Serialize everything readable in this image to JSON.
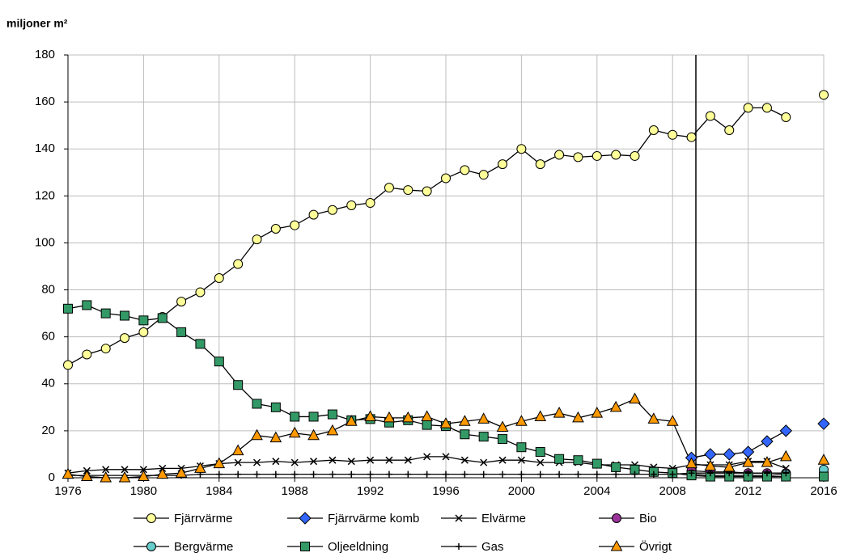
{
  "chart_data": {
    "type": "line",
    "y_label": "miljoner m²",
    "x": [
      1976,
      1977,
      1978,
      1979,
      1980,
      1981,
      1982,
      1983,
      1984,
      1985,
      1986,
      1987,
      1988,
      1989,
      1990,
      1991,
      1992,
      1993,
      1994,
      1995,
      1996,
      1997,
      1998,
      1999,
      2000,
      2001,
      2002,
      2003,
      2004,
      2005,
      2006,
      2007,
      2008,
      2009,
      2010,
      2011,
      2012,
      2013,
      2014,
      2015,
      2016
    ],
    "xlim": [
      1976,
      2016
    ],
    "xticks": [
      1976,
      1980,
      1984,
      1988,
      1992,
      1996,
      2000,
      2004,
      2008,
      2012,
      2016
    ],
    "ylim": [
      0,
      180
    ],
    "yticks": [
      0,
      20,
      40,
      60,
      80,
      100,
      120,
      140,
      160,
      180
    ],
    "grid": true,
    "legend": "bottom",
    "series": [
      {
        "name": "Fjärrvärme",
        "color": "#ffff99",
        "marker": "circle",
        "values": [
          48,
          52.5,
          55,
          59.5,
          62,
          68.5,
          75,
          79,
          85,
          91,
          101.5,
          106,
          107.5,
          112,
          114,
          116,
          117,
          123.5,
          122.5,
          122,
          127.5,
          131,
          129,
          133.5,
          140,
          133.5,
          137.5,
          136.5,
          137,
          137.5,
          137,
          148,
          146,
          145,
          154,
          148,
          157.5,
          157.5,
          153.5,
          null,
          163
        ]
      },
      {
        "name": "Fjärrvärme komb",
        "color": "#3366ff",
        "marker": "diamond",
        "values": [
          null,
          null,
          null,
          null,
          null,
          null,
          null,
          null,
          null,
          null,
          null,
          null,
          null,
          null,
          null,
          null,
          null,
          null,
          null,
          null,
          null,
          null,
          null,
          null,
          null,
          null,
          null,
          null,
          null,
          null,
          null,
          null,
          null,
          8.5,
          10,
          10,
          11,
          15.5,
          20,
          null,
          23
        ]
      },
      {
        "name": "Elvärme",
        "color": "#000000",
        "marker": "x",
        "values": [
          2,
          3,
          3.5,
          3.5,
          3.5,
          4,
          4,
          5,
          6,
          6.5,
          6.5,
          7,
          6.5,
          7,
          7.5,
          7,
          7.5,
          7.5,
          7.5,
          9,
          9,
          7.5,
          6.5,
          7.5,
          7.5,
          6.5,
          6.5,
          6.5,
          5.5,
          5.5,
          5.5,
          4.5,
          4,
          5.5,
          5.5,
          5.5,
          7,
          7,
          4,
          null,
          null
        ]
      },
      {
        "name": "Bio",
        "color": "#993399",
        "marker": "circle",
        "values": [
          null,
          null,
          null,
          null,
          null,
          null,
          null,
          null,
          null,
          null,
          null,
          null,
          null,
          null,
          null,
          null,
          null,
          null,
          null,
          null,
          null,
          null,
          null,
          null,
          null,
          null,
          null,
          null,
          null,
          null,
          null,
          null,
          null,
          3,
          2.5,
          2.5,
          2,
          2,
          2,
          null,
          2
        ]
      },
      {
        "name": "Bergvärme",
        "color": "#66cccc",
        "marker": "circle",
        "values": [
          null,
          null,
          null,
          null,
          null,
          null,
          null,
          null,
          null,
          null,
          null,
          null,
          null,
          null,
          null,
          null,
          null,
          null,
          null,
          null,
          null,
          null,
          null,
          null,
          null,
          null,
          null,
          null,
          null,
          null,
          null,
          null,
          null,
          1.5,
          1,
          1,
          1,
          1,
          1.5,
          null,
          3.5
        ]
      },
      {
        "name": "Oljeeldning",
        "color": "#339966",
        "marker": "square",
        "values": [
          72,
          73.5,
          70,
          69,
          67,
          68,
          62,
          57,
          49.5,
          39.5,
          31.5,
          30,
          26,
          26,
          27,
          24.5,
          25,
          23.5,
          24.5,
          22.5,
          22,
          18.5,
          17.5,
          16.5,
          13,
          11,
          8,
          7.5,
          6,
          4.5,
          3.5,
          2.5,
          2,
          1,
          0.5,
          0.5,
          0.5,
          0.5,
          0.5,
          null,
          0.5
        ]
      },
      {
        "name": "Gas",
        "color": "#000000",
        "marker": "plus",
        "values": [
          1,
          1,
          1,
          1,
          1,
          1,
          1,
          1.5,
          1.5,
          1.5,
          1.5,
          1.5,
          1.5,
          1.5,
          1.5,
          1.5,
          1.5,
          1.5,
          1.5,
          1.5,
          1.5,
          1.5,
          1.5,
          1.5,
          1.5,
          1.5,
          1.5,
          1.5,
          1.5,
          1.5,
          1.5,
          1.5,
          1.5,
          2,
          2,
          2,
          2,
          2,
          2,
          null,
          null
        ]
      },
      {
        "name": "Övrigt",
        "color": "#ff9900",
        "marker": "triangle",
        "values": [
          1.5,
          0.5,
          0,
          0,
          0.5,
          1.5,
          2,
          4,
          6,
          11.5,
          18,
          17,
          19,
          18,
          20,
          24,
          26,
          25.5,
          25.5,
          26,
          23,
          24,
          25,
          21.5,
          24,
          26,
          27.5,
          25.5,
          27.5,
          30,
          33.5,
          25,
          24,
          6,
          5,
          4.5,
          6.5,
          6.5,
          9,
          null,
          7.5
        ]
      }
    ]
  }
}
